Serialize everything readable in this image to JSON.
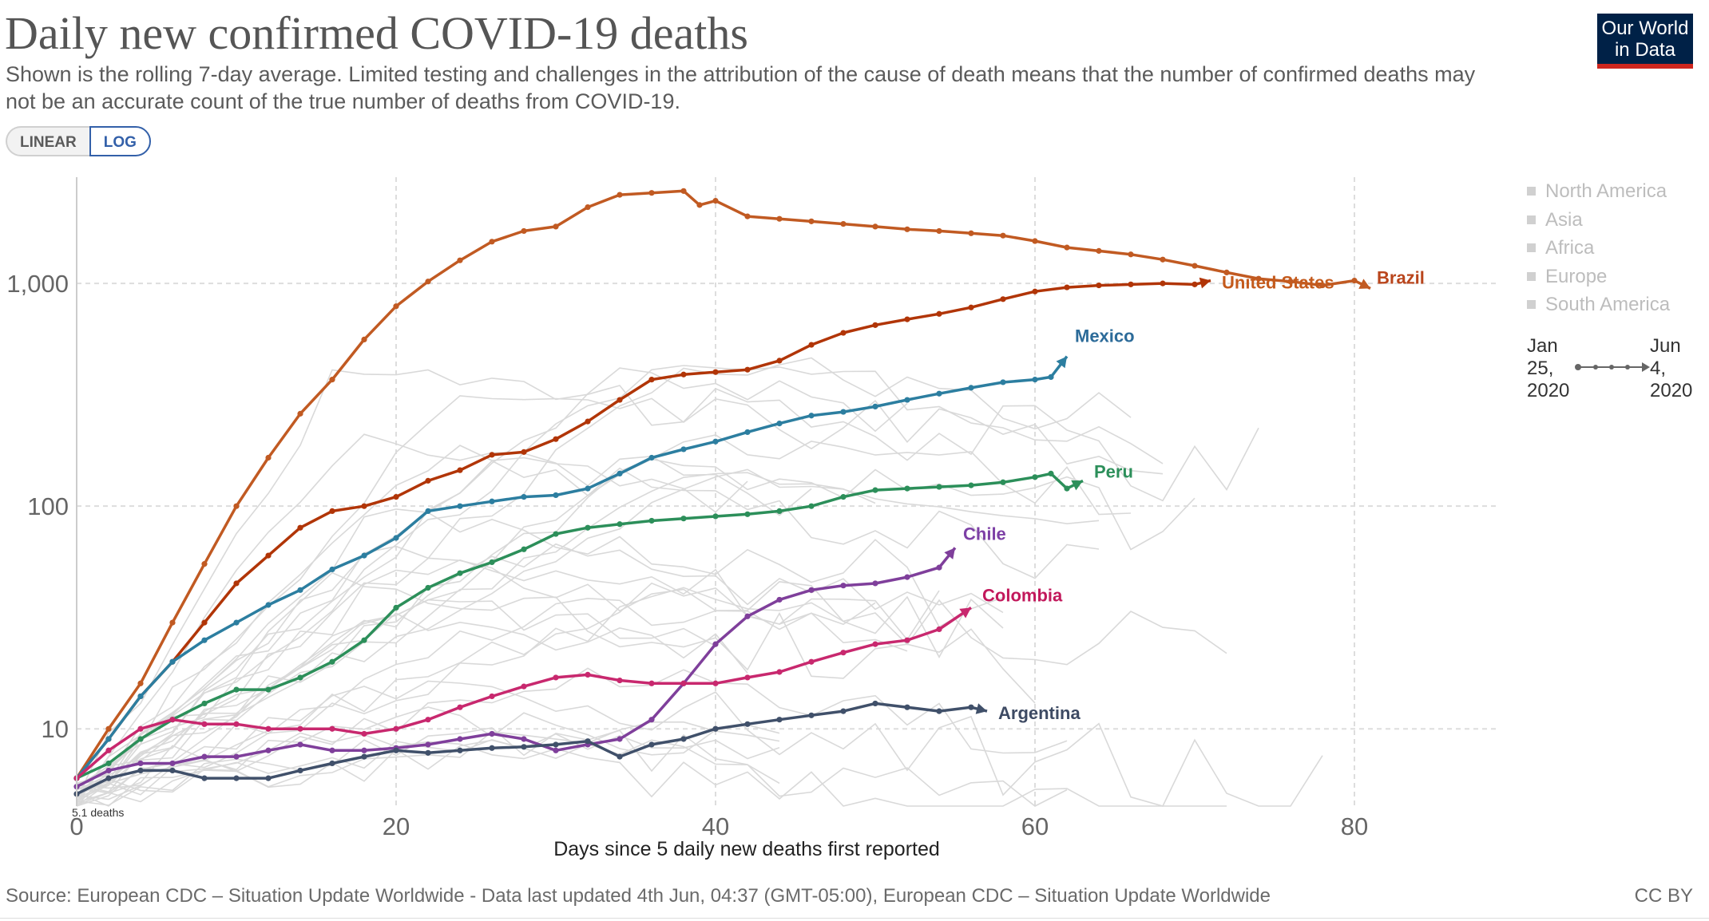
{
  "header": {
    "title": "Daily new confirmed COVID-19 deaths",
    "subtitle": "Shown is the rolling 7-day average. Limited testing and challenges in the attribution of the cause of death means that the number of confirmed deaths may not be an accurate count of the true number of deaths from COVID-19."
  },
  "logo": {
    "line1": "Our World",
    "line2": "in Data"
  },
  "scale_toggle": {
    "linear_label": "LINEAR",
    "log_label": "LOG",
    "selected": "LOG"
  },
  "legend": {
    "items": [
      {
        "label": "North America"
      },
      {
        "label": "Asia"
      },
      {
        "label": "Africa"
      },
      {
        "label": "Europe"
      },
      {
        "label": "South America"
      }
    ]
  },
  "timeline": {
    "start_line1": "Jan",
    "start_line2": "25,",
    "start_line3": "2020",
    "end_line1": "Jun",
    "end_line2": "4,",
    "end_line3": "2020"
  },
  "footer": {
    "source": "Source: European CDC – Situation Update Worldwide - Data last updated 4th Jun, 04:37 (GMT-05:00), European CDC – Situation Update Worldwide",
    "license": "CC BY"
  },
  "chart_data": {
    "type": "line",
    "title": "Daily new confirmed COVID-19 deaths",
    "xlabel": "Days since 5 daily new deaths first reported",
    "ylabel": "",
    "yscale": "log",
    "xlim": [
      0,
      89
    ],
    "ylim": [
      4.5,
      3000
    ],
    "x_ticks": [
      0,
      20,
      40,
      60,
      80
    ],
    "y_ticks": [
      10,
      100,
      1000
    ],
    "y_tick_labels": [
      "10",
      "100",
      "1,000"
    ],
    "grid": true,
    "start_annotation": "5.1 deaths",
    "series": [
      {
        "name": "Brazil",
        "color": "#c15a22",
        "label_color": "#b9451c",
        "points": [
          [
            0,
            6
          ],
          [
            2,
            10
          ],
          [
            4,
            16
          ],
          [
            6,
            30
          ],
          [
            8,
            55
          ],
          [
            10,
            100
          ],
          [
            12,
            165
          ],
          [
            14,
            260
          ],
          [
            16,
            370
          ],
          [
            18,
            560
          ],
          [
            20,
            790
          ],
          [
            22,
            1020
          ],
          [
            24,
            1270
          ],
          [
            26,
            1540
          ],
          [
            28,
            1720
          ],
          [
            30,
            1800
          ],
          [
            32,
            2200
          ],
          [
            34,
            2500
          ],
          [
            36,
            2550
          ],
          [
            38,
            2600
          ],
          [
            39,
            2250
          ],
          [
            40,
            2350
          ],
          [
            42,
            2000
          ],
          [
            44,
            1950
          ],
          [
            46,
            1900
          ],
          [
            48,
            1850
          ],
          [
            50,
            1800
          ],
          [
            52,
            1750
          ],
          [
            54,
            1720
          ],
          [
            56,
            1680
          ],
          [
            58,
            1640
          ],
          [
            60,
            1550
          ],
          [
            62,
            1450
          ],
          [
            64,
            1400
          ],
          [
            66,
            1350
          ],
          [
            68,
            1280
          ],
          [
            70,
            1200
          ],
          [
            72,
            1120
          ],
          [
            74,
            1050
          ],
          [
            76,
            1020
          ],
          [
            78,
            980
          ],
          [
            80,
            1030
          ],
          [
            81,
            950
          ]
        ]
      },
      {
        "name": "United States",
        "color": "#b13507",
        "label_color": "#c45a1c",
        "points": [
          [
            0,
            6
          ],
          [
            2,
            9
          ],
          [
            4,
            14
          ],
          [
            6,
            20
          ],
          [
            8,
            30
          ],
          [
            10,
            45
          ],
          [
            12,
            60
          ],
          [
            14,
            80
          ],
          [
            16,
            95
          ],
          [
            18,
            100
          ],
          [
            20,
            110
          ],
          [
            22,
            130
          ],
          [
            24,
            145
          ],
          [
            26,
            170
          ],
          [
            28,
            175
          ],
          [
            30,
            200
          ],
          [
            32,
            240
          ],
          [
            34,
            300
          ],
          [
            36,
            370
          ],
          [
            38,
            390
          ],
          [
            40,
            400
          ],
          [
            42,
            410
          ],
          [
            44,
            450
          ],
          [
            46,
            530
          ],
          [
            48,
            600
          ],
          [
            50,
            650
          ],
          [
            52,
            690
          ],
          [
            54,
            730
          ],
          [
            56,
            780
          ],
          [
            58,
            850
          ],
          [
            60,
            920
          ],
          [
            62,
            960
          ],
          [
            64,
            980
          ],
          [
            66,
            990
          ],
          [
            68,
            1000
          ],
          [
            70,
            990
          ],
          [
            71,
            1030
          ]
        ]
      },
      {
        "name": "Mexico",
        "color": "#2c7ea0",
        "label_color": "#2c6b99",
        "points": [
          [
            0,
            6
          ],
          [
            2,
            9
          ],
          [
            4,
            14
          ],
          [
            6,
            20
          ],
          [
            8,
            25
          ],
          [
            10,
            30
          ],
          [
            12,
            36
          ],
          [
            14,
            42
          ],
          [
            16,
            52
          ],
          [
            18,
            60
          ],
          [
            20,
            72
          ],
          [
            22,
            95
          ],
          [
            24,
            100
          ],
          [
            26,
            105
          ],
          [
            28,
            110
          ],
          [
            30,
            112
          ],
          [
            32,
            120
          ],
          [
            34,
            140
          ],
          [
            36,
            165
          ],
          [
            38,
            180
          ],
          [
            40,
            195
          ],
          [
            42,
            215
          ],
          [
            44,
            235
          ],
          [
            46,
            255
          ],
          [
            48,
            265
          ],
          [
            50,
            280
          ],
          [
            52,
            300
          ],
          [
            54,
            320
          ],
          [
            56,
            340
          ],
          [
            58,
            360
          ],
          [
            60,
            370
          ],
          [
            61,
            380
          ],
          [
            62,
            470
          ]
        ]
      },
      {
        "name": "Peru",
        "color": "#2c8f5a",
        "label_color": "#2c8f5a",
        "points": [
          [
            0,
            6
          ],
          [
            2,
            7
          ],
          [
            4,
            9
          ],
          [
            6,
            11
          ],
          [
            8,
            13
          ],
          [
            10,
            15
          ],
          [
            12,
            15
          ],
          [
            14,
            17
          ],
          [
            16,
            20
          ],
          [
            18,
            25
          ],
          [
            20,
            35
          ],
          [
            22,
            43
          ],
          [
            24,
            50
          ],
          [
            26,
            56
          ],
          [
            28,
            64
          ],
          [
            30,
            75
          ],
          [
            32,
            80
          ],
          [
            34,
            83
          ],
          [
            36,
            86
          ],
          [
            38,
            88
          ],
          [
            40,
            90
          ],
          [
            42,
            92
          ],
          [
            44,
            95
          ],
          [
            46,
            100
          ],
          [
            48,
            110
          ],
          [
            50,
            118
          ],
          [
            52,
            120
          ],
          [
            54,
            122
          ],
          [
            56,
            124
          ],
          [
            58,
            128
          ],
          [
            60,
            135
          ],
          [
            61,
            140
          ],
          [
            62,
            120
          ],
          [
            63,
            130
          ]
        ]
      },
      {
        "name": "Chile",
        "color": "#7f3f9b",
        "label_color": "#7d40a6",
        "points": [
          [
            0,
            5.5
          ],
          [
            2,
            6.5
          ],
          [
            4,
            7
          ],
          [
            6,
            7
          ],
          [
            8,
            7.5
          ],
          [
            10,
            7.5
          ],
          [
            12,
            8
          ],
          [
            14,
            8.5
          ],
          [
            16,
            8
          ],
          [
            18,
            8
          ],
          [
            20,
            8.2
          ],
          [
            22,
            8.5
          ],
          [
            24,
            9
          ],
          [
            26,
            9.5
          ],
          [
            28,
            9
          ],
          [
            30,
            8
          ],
          [
            32,
            8.5
          ],
          [
            34,
            9
          ],
          [
            36,
            11
          ],
          [
            38,
            16
          ],
          [
            40,
            24
          ],
          [
            42,
            32
          ],
          [
            44,
            38
          ],
          [
            46,
            42
          ],
          [
            48,
            44
          ],
          [
            50,
            45
          ],
          [
            52,
            48
          ],
          [
            54,
            53
          ],
          [
            55,
            65
          ]
        ]
      },
      {
        "name": "Colombia",
        "color": "#c8286e",
        "label_color": "#c2185b",
        "points": [
          [
            0,
            6
          ],
          [
            2,
            8
          ],
          [
            4,
            10
          ],
          [
            6,
            11
          ],
          [
            8,
            10.5
          ],
          [
            10,
            10.5
          ],
          [
            12,
            10
          ],
          [
            14,
            10
          ],
          [
            16,
            10
          ],
          [
            18,
            9.5
          ],
          [
            20,
            10
          ],
          [
            22,
            11
          ],
          [
            24,
            12.5
          ],
          [
            26,
            14
          ],
          [
            28,
            15.5
          ],
          [
            30,
            17
          ],
          [
            32,
            17.5
          ],
          [
            34,
            16.5
          ],
          [
            36,
            16
          ],
          [
            38,
            16
          ],
          [
            40,
            16
          ],
          [
            42,
            17
          ],
          [
            44,
            18
          ],
          [
            46,
            20
          ],
          [
            48,
            22
          ],
          [
            50,
            24
          ],
          [
            52,
            25
          ],
          [
            54,
            28
          ],
          [
            56,
            35
          ]
        ]
      },
      {
        "name": "Argentina",
        "color": "#40506a",
        "label_color": "#3d4a63",
        "points": [
          [
            0,
            5.1
          ],
          [
            2,
            6
          ],
          [
            4,
            6.5
          ],
          [
            6,
            6.5
          ],
          [
            8,
            6
          ],
          [
            10,
            6
          ],
          [
            12,
            6
          ],
          [
            14,
            6.5
          ],
          [
            16,
            7
          ],
          [
            18,
            7.5
          ],
          [
            20,
            8
          ],
          [
            22,
            7.8
          ],
          [
            24,
            8
          ],
          [
            26,
            8.2
          ],
          [
            28,
            8.3
          ],
          [
            30,
            8.5
          ],
          [
            32,
            8.8
          ],
          [
            34,
            7.5
          ],
          [
            36,
            8.5
          ],
          [
            38,
            9
          ],
          [
            40,
            10
          ],
          [
            42,
            10.5
          ],
          [
            44,
            11
          ],
          [
            46,
            11.5
          ],
          [
            48,
            12
          ],
          [
            50,
            13
          ],
          [
            52,
            12.5
          ],
          [
            54,
            12
          ],
          [
            56,
            12.5
          ],
          [
            57,
            12
          ]
        ]
      }
    ],
    "background_series_count": 30
  }
}
